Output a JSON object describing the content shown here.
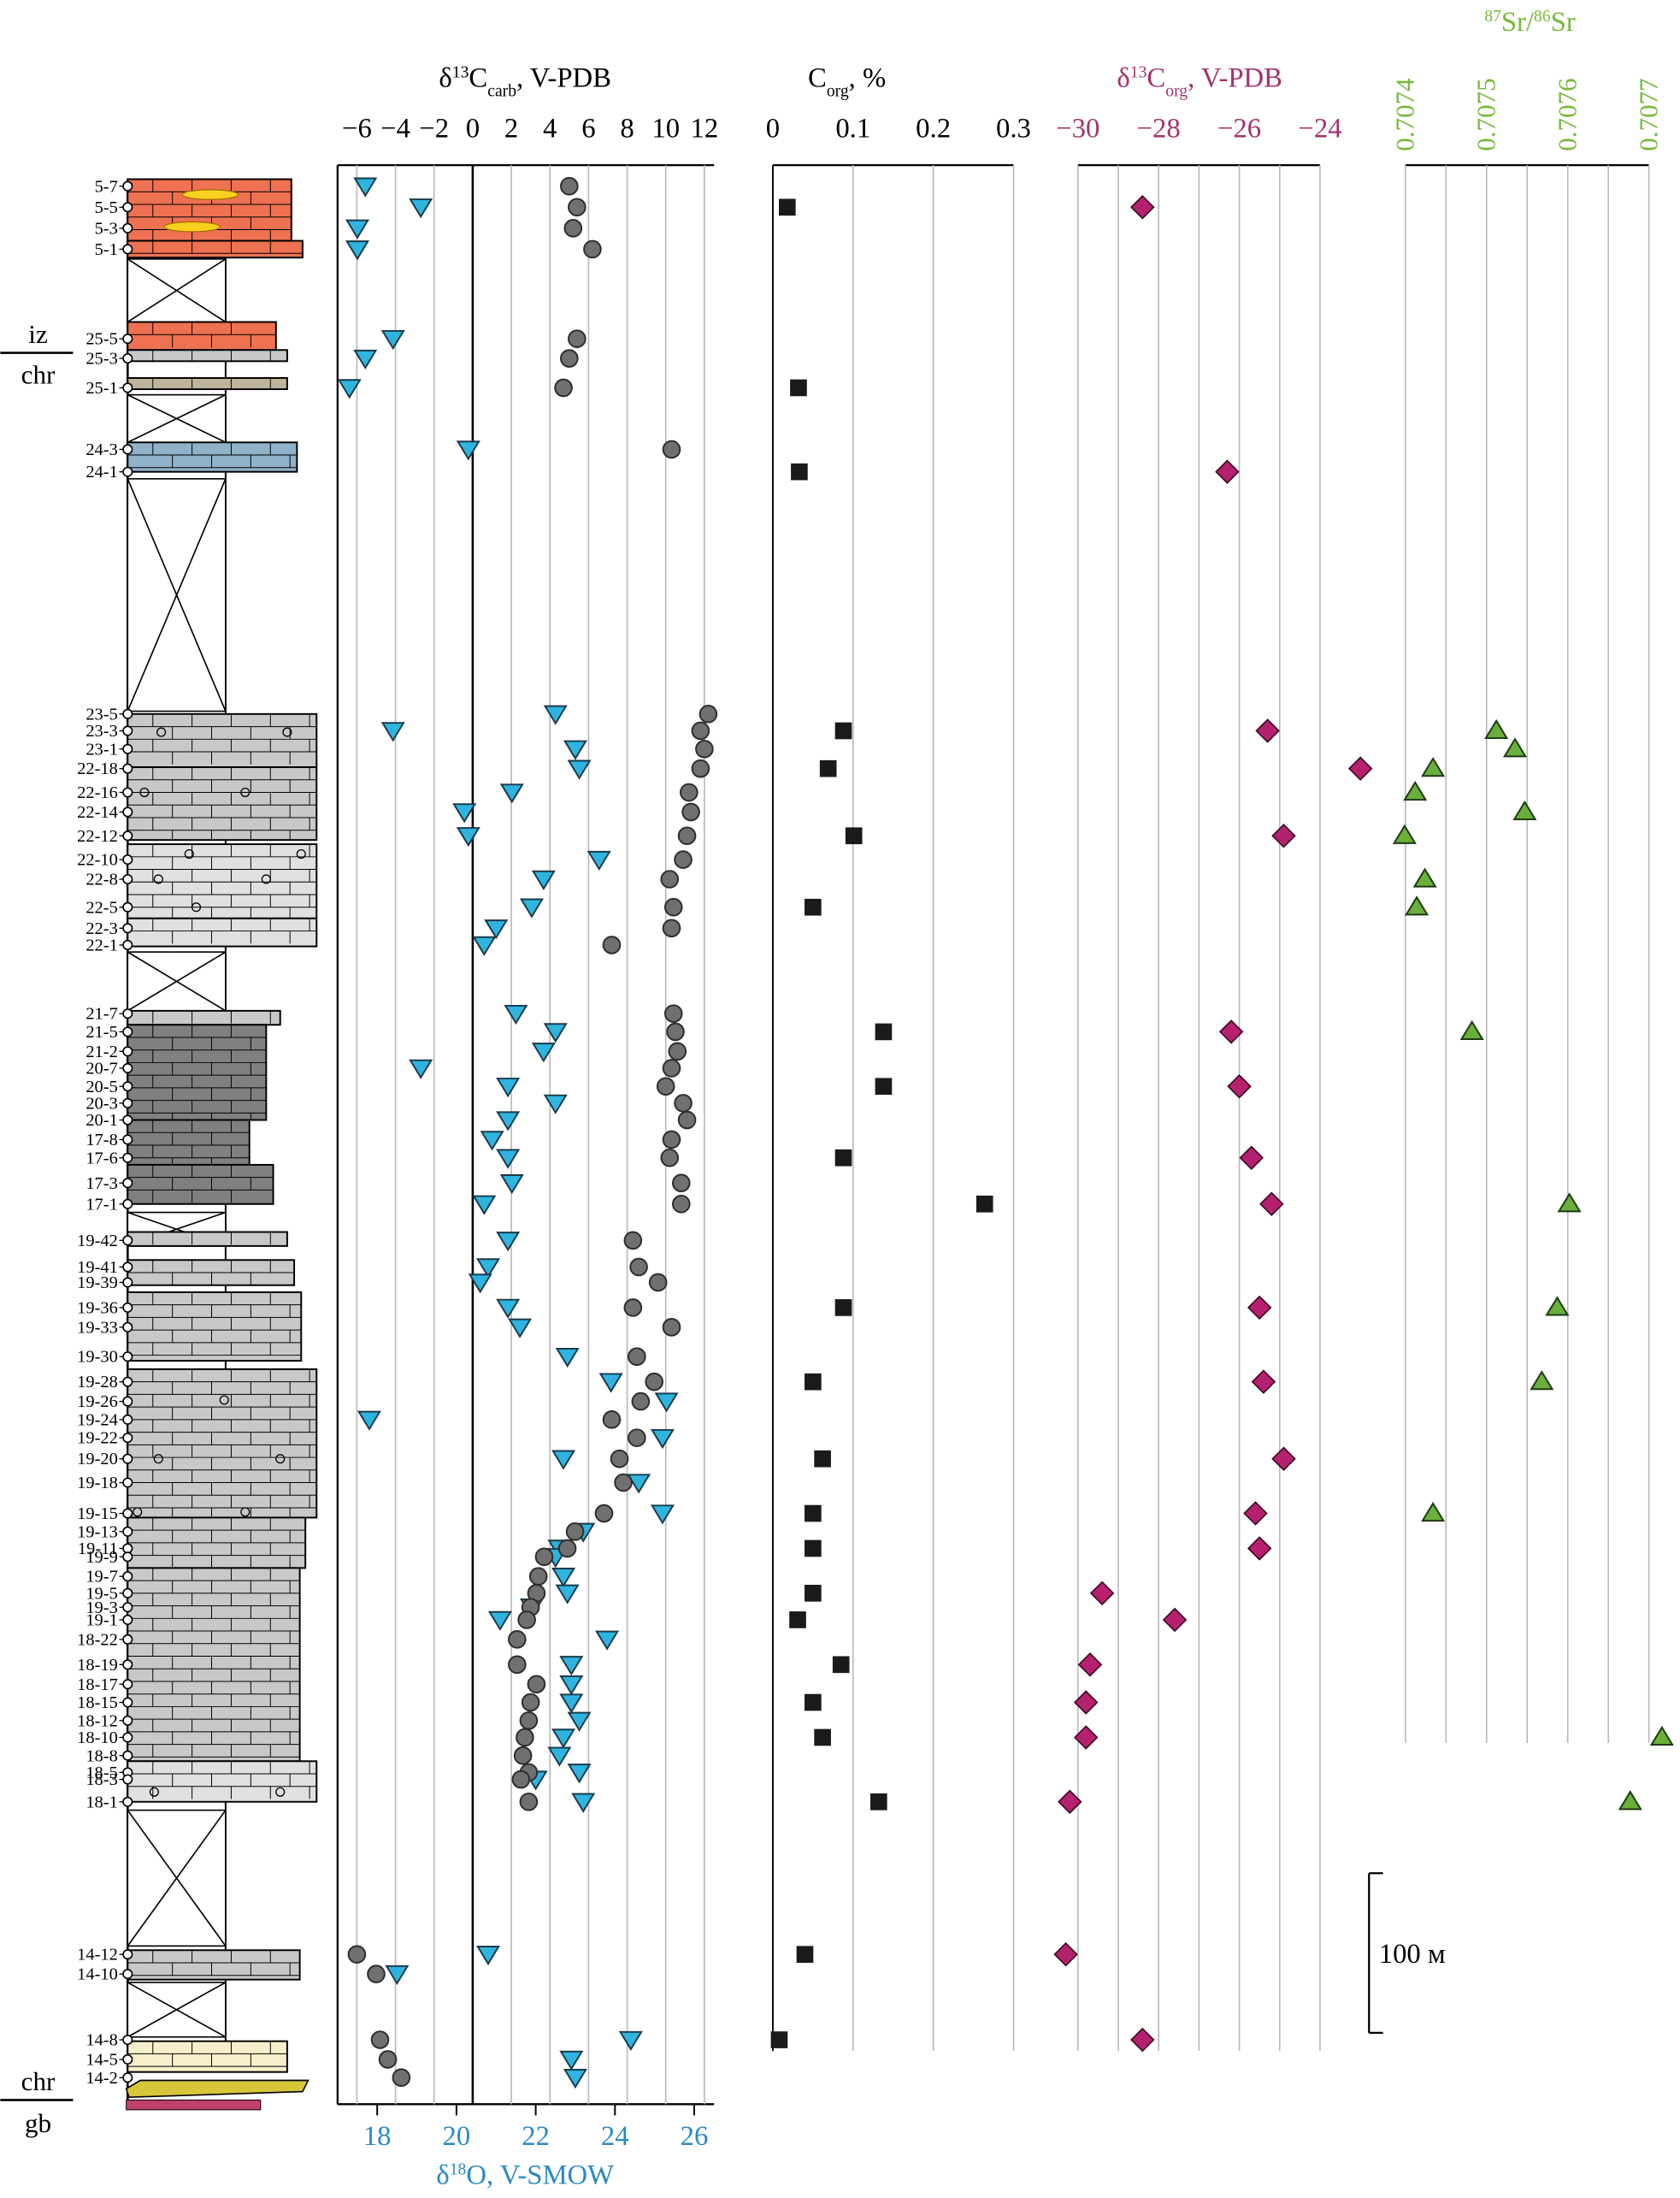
{
  "colors": {
    "d13c_carb": "#6e6e6e",
    "d18o": "#2fb4e0",
    "corg": "#1a1a1a",
    "d13c_org": "#b5206f",
    "sr": "#6aae3c",
    "d18o_label": "#2a8ac2",
    "d13c_org_label": "#a2336e",
    "sr_label": "#77b83a",
    "red_bed": "#ee7152",
    "grey_limestone": "#c8c8c8",
    "light_limestone": "#e0e0e0",
    "dark_limestone": "#808080",
    "blue_dolomite": "#8fb2c9",
    "marl": "#bdb49a",
    "sandy": "#f7efcb",
    "basement": "#c0406a"
  },
  "headers": {
    "d13c_carb": "δ13Ccarb, V-PDB",
    "corg": "Corg, %",
    "d13c_org": "δ13Corg, V-PDB",
    "sr": "87Sr/86Sr",
    "d18o": "δ18O, V-SMOW"
  },
  "scale_bar": {
    "label": "100 м",
    "length_m": 100
  },
  "formation_boundaries": [
    {
      "upper": "iz",
      "lower": "chr"
    },
    {
      "upper": "chr",
      "lower": "gb"
    }
  ],
  "chart_data": [
    {
      "type": "scatter",
      "name": "d13c_carb",
      "title": "δ13Ccarb, V-PDB",
      "xlim": [
        -7,
        12.5
      ],
      "ticks": [
        "−6",
        "−4",
        "−2",
        "0",
        "2",
        "4",
        "6",
        "8",
        "10",
        "12"
      ],
      "tick_values": [
        -6,
        -4,
        -2,
        0,
        2,
        4,
        6,
        8,
        10,
        12
      ],
      "points": [
        {
          "s": "5-7",
          "x": 5.0
        },
        {
          "s": "5-5",
          "x": 5.4
        },
        {
          "s": "5-3",
          "x": 5.2
        },
        {
          "s": "5-1",
          "x": 6.2
        },
        {
          "s": "25-5",
          "x": 5.4
        },
        {
          "s": "25-3",
          "x": 5.0
        },
        {
          "s": "25-1",
          "x": 4.7
        },
        {
          "s": "24-3",
          "x": 10.3
        },
        {
          "s": "23-5",
          "x": 12.2
        },
        {
          "s": "23-3",
          "x": 11.8
        },
        {
          "s": "23-1",
          "x": 12.0
        },
        {
          "s": "22-18",
          "x": 11.8
        },
        {
          "s": "22-16",
          "x": 11.2
        },
        {
          "s": "22-14",
          "x": 11.3
        },
        {
          "s": "22-12",
          "x": 11.1
        },
        {
          "s": "22-10",
          "x": 10.9
        },
        {
          "s": "22-8",
          "x": 10.2
        },
        {
          "s": "22-5",
          "x": 10.4
        },
        {
          "s": "22-3",
          "x": 10.3
        },
        {
          "s": "22-1",
          "x": 7.2
        },
        {
          "s": "21-7",
          "x": 10.4
        },
        {
          "s": "21-5",
          "x": 10.5
        },
        {
          "s": "21-2",
          "x": 10.6
        },
        {
          "s": "20-7",
          "x": 10.3
        },
        {
          "s": "20-5",
          "x": 10.0
        },
        {
          "s": "20-3",
          "x": 10.9
        },
        {
          "s": "20-1",
          "x": 11.1
        },
        {
          "s": "17-8",
          "x": 10.3
        },
        {
          "s": "17-6",
          "x": 10.2
        },
        {
          "s": "17-3",
          "x": 10.8
        },
        {
          "s": "17-1",
          "x": 10.8
        },
        {
          "s": "19-42",
          "x": 8.3
        },
        {
          "s": "19-41",
          "x": 8.6
        },
        {
          "s": "19-39",
          "x": 9.6
        },
        {
          "s": "19-36",
          "x": 8.3
        },
        {
          "s": "19-33",
          "x": 10.3
        },
        {
          "s": "19-30",
          "x": 8.5
        },
        {
          "s": "19-28",
          "x": 9.4
        },
        {
          "s": "19-26",
          "x": 8.7
        },
        {
          "s": "19-24",
          "x": 7.2
        },
        {
          "s": "19-22",
          "x": 8.5
        },
        {
          "s": "19-20",
          "x": 7.6
        },
        {
          "s": "19-18",
          "x": 7.8
        },
        {
          "s": "19-15",
          "x": 6.8
        },
        {
          "s": "19-13",
          "x": 5.3
        },
        {
          "s": "19-11",
          "x": 4.9
        },
        {
          "s": "19-9",
          "x": 3.7
        },
        {
          "s": "19-7",
          "x": 3.4
        },
        {
          "s": "19-5",
          "x": 3.3
        },
        {
          "s": "19-3",
          "x": 3.0
        },
        {
          "s": "19-1",
          "x": 2.8
        },
        {
          "s": "18-22",
          "x": 2.3
        },
        {
          "s": "18-19",
          "x": 2.3
        },
        {
          "s": "18-17",
          "x": 3.3
        },
        {
          "s": "18-15",
          "x": 3.0
        },
        {
          "s": "18-12",
          "x": 2.9
        },
        {
          "s": "18-10",
          "x": 2.7
        },
        {
          "s": "18-8",
          "x": 2.6
        },
        {
          "s": "18-5",
          "x": 2.9
        },
        {
          "s": "18-3",
          "x": 2.5
        },
        {
          "s": "18-1",
          "x": 2.9
        },
        {
          "s": "14-12",
          "x": -6.0
        },
        {
          "s": "14-10",
          "x": -5.0
        },
        {
          "s": "14-8",
          "x": -4.8
        },
        {
          "s": "14-5",
          "x": -4.4
        },
        {
          "s": "14-2",
          "x": -3.7
        }
      ]
    },
    {
      "type": "scatter",
      "name": "d18o",
      "title": "δ18O, V-SMOW",
      "xlim": [
        17,
        26.5
      ],
      "ticks": [
        "18",
        "20",
        "22",
        "24",
        "26"
      ],
      "tick_values": [
        18,
        20,
        22,
        24,
        26
      ],
      "points": [
        {
          "s": "5-7",
          "x": 17.7
        },
        {
          "s": "5-5",
          "x": 19.1
        },
        {
          "s": "5-3",
          "x": 17.5
        },
        {
          "s": "5-1",
          "x": 17.5
        },
        {
          "s": "25-5",
          "x": 18.4
        },
        {
          "s": "25-3",
          "x": 17.7
        },
        {
          "s": "25-1",
          "x": 17.3
        },
        {
          "s": "24-3",
          "x": 20.3
        },
        {
          "s": "23-5",
          "x": 22.5
        },
        {
          "s": "23-3",
          "x": 18.4
        },
        {
          "s": "23-1",
          "x": 23.0
        },
        {
          "s": "22-18",
          "x": 23.1
        },
        {
          "s": "22-16",
          "x": 21.4
        },
        {
          "s": "22-14",
          "x": 20.2
        },
        {
          "s": "22-12",
          "x": 20.3
        },
        {
          "s": "22-10",
          "x": 23.6
        },
        {
          "s": "22-8",
          "x": 22.2
        },
        {
          "s": "22-5",
          "x": 21.9
        },
        {
          "s": "22-3",
          "x": 21.0
        },
        {
          "s": "22-1",
          "x": 20.7
        },
        {
          "s": "21-7",
          "x": 21.5
        },
        {
          "s": "21-5",
          "x": 22.5
        },
        {
          "s": "21-2",
          "x": 22.2
        },
        {
          "s": "20-7",
          "x": 19.1
        },
        {
          "s": "20-5",
          "x": 21.3
        },
        {
          "s": "20-3",
          "x": 22.5
        },
        {
          "s": "20-1",
          "x": 21.3
        },
        {
          "s": "17-8",
          "x": 20.9
        },
        {
          "s": "17-6",
          "x": 21.3
        },
        {
          "s": "17-3",
          "x": 21.4
        },
        {
          "s": "17-1",
          "x": 20.7
        },
        {
          "s": "19-42",
          "x": 21.3
        },
        {
          "s": "19-41",
          "x": 20.8
        },
        {
          "s": "19-39",
          "x": 20.6
        },
        {
          "s": "19-36",
          "x": 21.3
        },
        {
          "s": "19-33",
          "x": 21.6
        },
        {
          "s": "19-30",
          "x": 22.8
        },
        {
          "s": "19-28",
          "x": 23.9
        },
        {
          "s": "19-26",
          "x": 25.3
        },
        {
          "s": "19-24",
          "x": 17.8
        },
        {
          "s": "19-22",
          "x": 25.2
        },
        {
          "s": "19-20",
          "x": 22.7
        },
        {
          "s": "19-18",
          "x": 24.6
        },
        {
          "s": "19-15",
          "x": 25.2
        },
        {
          "s": "19-13",
          "x": 23.2
        },
        {
          "s": "19-11",
          "x": 22.6
        },
        {
          "s": "19-9",
          "x": 22.5
        },
        {
          "s": "19-7",
          "x": 22.7
        },
        {
          "s": "19-5",
          "x": 22.8
        },
        {
          "s": "19-3",
          "x": 21.9
        },
        {
          "s": "19-1",
          "x": 21.1
        },
        {
          "s": "18-22",
          "x": 23.8
        },
        {
          "s": "18-19",
          "x": 22.9
        },
        {
          "s": "18-17",
          "x": 22.9
        },
        {
          "s": "18-15",
          "x": 22.9
        },
        {
          "s": "18-12",
          "x": 23.1
        },
        {
          "s": "18-10",
          "x": 22.7
        },
        {
          "s": "18-8",
          "x": 22.6
        },
        {
          "s": "18-5",
          "x": 23.1
        },
        {
          "s": "18-3",
          "x": 22.0
        },
        {
          "s": "18-1",
          "x": 23.2
        },
        {
          "s": "14-12",
          "x": 20.8
        },
        {
          "s": "14-10",
          "x": 18.5
        },
        {
          "s": "14-8",
          "x": 24.4
        },
        {
          "s": "14-5",
          "x": 22.9
        },
        {
          "s": "14-2",
          "x": 23.0
        }
      ]
    },
    {
      "type": "scatter",
      "name": "corg",
      "title": "Corg, %",
      "xlim": [
        0,
        0.3
      ],
      "ticks": [
        "0",
        "0.1",
        "0.2",
        "0.3"
      ],
      "tick_values": [
        0,
        0.1,
        0.2,
        0.3
      ],
      "points": [
        {
          "s": "5-5",
          "x": 0.018
        },
        {
          "s": "25-1",
          "x": 0.032
        },
        {
          "s": "24-1",
          "x": 0.033
        },
        {
          "s": "23-3",
          "x": 0.088
        },
        {
          "s": "22-18",
          "x": 0.069
        },
        {
          "s": "22-12",
          "x": 0.101
        },
        {
          "s": "22-5",
          "x": 0.05
        },
        {
          "s": "21-5",
          "x": 0.138
        },
        {
          "s": "20-5",
          "x": 0.138
        },
        {
          "s": "17-6",
          "x": 0.088
        },
        {
          "s": "17-1",
          "x": 0.264
        },
        {
          "s": "19-36",
          "x": 0.088
        },
        {
          "s": "19-28",
          "x": 0.05
        },
        {
          "s": "19-20",
          "x": 0.062
        },
        {
          "s": "19-15",
          "x": 0.05
        },
        {
          "s": "19-11",
          "x": 0.05
        },
        {
          "s": "19-5",
          "x": 0.05
        },
        {
          "s": "19-1",
          "x": 0.031
        },
        {
          "s": "18-19",
          "x": 0.085
        },
        {
          "s": "18-15",
          "x": 0.05
        },
        {
          "s": "18-10",
          "x": 0.062
        },
        {
          "s": "18-1",
          "x": 0.132
        },
        {
          "s": "14-12",
          "x": 0.04
        },
        {
          "s": "14-8",
          "x": 0.008
        }
      ]
    },
    {
      "type": "scatter",
      "name": "d13c_org",
      "title": "δ13Corg, V-PDB",
      "xlim": [
        -30,
        -24
      ],
      "ticks": [
        "−30",
        "−28",
        "−26",
        "−24"
      ],
      "tick_values": [
        -30,
        -28,
        -26,
        -24
      ],
      "points": [
        {
          "s": "5-5",
          "x": -28.4
        },
        {
          "s": "24-1",
          "x": -26.3
        },
        {
          "s": "23-3",
          "x": -25.3
        },
        {
          "s": "22-18",
          "x": -23.0
        },
        {
          "s": "22-12",
          "x": -24.9
        },
        {
          "s": "21-5",
          "x": -26.2
        },
        {
          "s": "20-5",
          "x": -26.0
        },
        {
          "s": "17-6",
          "x": -25.7
        },
        {
          "s": "17-1",
          "x": -25.2
        },
        {
          "s": "19-36",
          "x": -25.5
        },
        {
          "s": "19-28",
          "x": -25.4
        },
        {
          "s": "19-20",
          "x": -24.9
        },
        {
          "s": "19-15",
          "x": -25.6
        },
        {
          "s": "19-11",
          "x": -25.5
        },
        {
          "s": "19-5",
          "x": -29.4
        },
        {
          "s": "19-1",
          "x": -27.6
        },
        {
          "s": "18-19",
          "x": -29.7
        },
        {
          "s": "18-15",
          "x": -29.8
        },
        {
          "s": "18-10",
          "x": -29.8
        },
        {
          "s": "18-1",
          "x": -30.2
        },
        {
          "s": "14-12",
          "x": -30.3
        },
        {
          "s": "14-8",
          "x": -28.4
        }
      ]
    },
    {
      "type": "scatter",
      "name": "sr",
      "title": "87Sr/86Sr",
      "xlim": [
        0.7074,
        0.7077
      ],
      "ticks": [
        "0.7074",
        "0.7075",
        "0.7076",
        "0.7077"
      ],
      "tick_values": [
        0.7074,
        0.7075,
        0.7076,
        0.7077
      ],
      "points": [
        {
          "s": "23-3",
          "x": 0.707512
        },
        {
          "s": "23-1",
          "x": 0.707535
        },
        {
          "s": "22-18",
          "x": 0.707434
        },
        {
          "s": "22-16",
          "x": 0.707412
        },
        {
          "s": "22-14",
          "x": 0.707547
        },
        {
          "s": "22-12",
          "x": 0.707399
        },
        {
          "s": "22-8",
          "x": 0.707424
        },
        {
          "s": "22-5",
          "x": 0.707414
        },
        {
          "s": "21-5",
          "x": 0.707482
        },
        {
          "s": "17-1",
          "x": 0.707602
        },
        {
          "s": "19-36",
          "x": 0.707587
        },
        {
          "s": "19-28",
          "x": 0.707568
        },
        {
          "s": "19-15",
          "x": 0.707434
        },
        {
          "s": "18-10",
          "x": 0.707716
        },
        {
          "s": "18-1",
          "x": 0.707677
        }
      ]
    }
  ],
  "samples": [
    {
      "label": "5-7",
      "y": 133
    },
    {
      "label": "5-5",
      "y": 148
    },
    {
      "label": "5-3",
      "y": 163
    },
    {
      "label": "5-1",
      "y": 178
    },
    {
      "label": "25-5",
      "y": 242
    },
    {
      "label": "25-3",
      "y": 256
    },
    {
      "label": "25-1",
      "y": 277
    },
    {
      "label": "24-3",
      "y": 321
    },
    {
      "label": "24-1",
      "y": 337
    },
    {
      "label": "23-5",
      "y": 510
    },
    {
      "label": "23-3",
      "y": 522
    },
    {
      "label": "23-1",
      "y": 535
    },
    {
      "label": "22-18",
      "y": 549
    },
    {
      "label": "22-16",
      "y": 566
    },
    {
      "label": "22-14",
      "y": 580
    },
    {
      "label": "22-12",
      "y": 597
    },
    {
      "label": "22-10",
      "y": 614
    },
    {
      "label": "22-8",
      "y": 628
    },
    {
      "label": "22-5",
      "y": 648
    },
    {
      "label": "22-3",
      "y": 663
    },
    {
      "label": "22-1",
      "y": 675
    },
    {
      "label": "21-7",
      "y": 724
    },
    {
      "label": "21-5",
      "y": 737
    },
    {
      "label": "21-2",
      "y": 751
    },
    {
      "label": "20-7",
      "y": 763
    },
    {
      "label": "20-5",
      "y": 776
    },
    {
      "label": "20-3",
      "y": 788
    },
    {
      "label": "20-1",
      "y": 800
    },
    {
      "label": "17-8",
      "y": 814
    },
    {
      "label": "17-6",
      "y": 827
    },
    {
      "label": "17-3",
      "y": 845
    },
    {
      "label": "17-1",
      "y": 860
    },
    {
      "label": "19-42",
      "y": 886
    },
    {
      "label": "19-41",
      "y": 905
    },
    {
      "label": "19-39",
      "y": 916
    },
    {
      "label": "19-36",
      "y": 934
    },
    {
      "label": "19-33",
      "y": 948
    },
    {
      "label": "19-30",
      "y": 969
    },
    {
      "label": "19-28",
      "y": 987
    },
    {
      "label": "19-26",
      "y": 1001
    },
    {
      "label": "19-24",
      "y": 1014
    },
    {
      "label": "19-22",
      "y": 1027
    },
    {
      "label": "19-20",
      "y": 1042
    },
    {
      "label": "19-18",
      "y": 1059
    },
    {
      "label": "19-15",
      "y": 1081
    },
    {
      "label": "19-13",
      "y": 1094
    },
    {
      "label": "19-11",
      "y": 1106
    },
    {
      "label": "19-9",
      "y": 1112
    },
    {
      "label": "19-7",
      "y": 1126
    },
    {
      "label": "19-5",
      "y": 1138
    },
    {
      "label": "19-3",
      "y": 1148
    },
    {
      "label": "19-1",
      "y": 1157
    },
    {
      "label": "18-22",
      "y": 1171
    },
    {
      "label": "18-19",
      "y": 1189
    },
    {
      "label": "18-17",
      "y": 1203
    },
    {
      "label": "18-15",
      "y": 1216
    },
    {
      "label": "18-12",
      "y": 1229
    },
    {
      "label": "18-10",
      "y": 1241
    },
    {
      "label": "18-8",
      "y": 1254
    },
    {
      "label": "18-5",
      "y": 1266
    },
    {
      "label": "18-3",
      "y": 1271
    },
    {
      "label": "18-1",
      "y": 1287
    },
    {
      "label": "14-12",
      "y": 1396
    },
    {
      "label": "14-10",
      "y": 1410
    },
    {
      "label": "14-8",
      "y": 1457
    },
    {
      "label": "14-5",
      "y": 1471
    },
    {
      "label": "14-2",
      "y": 1484
    }
  ]
}
